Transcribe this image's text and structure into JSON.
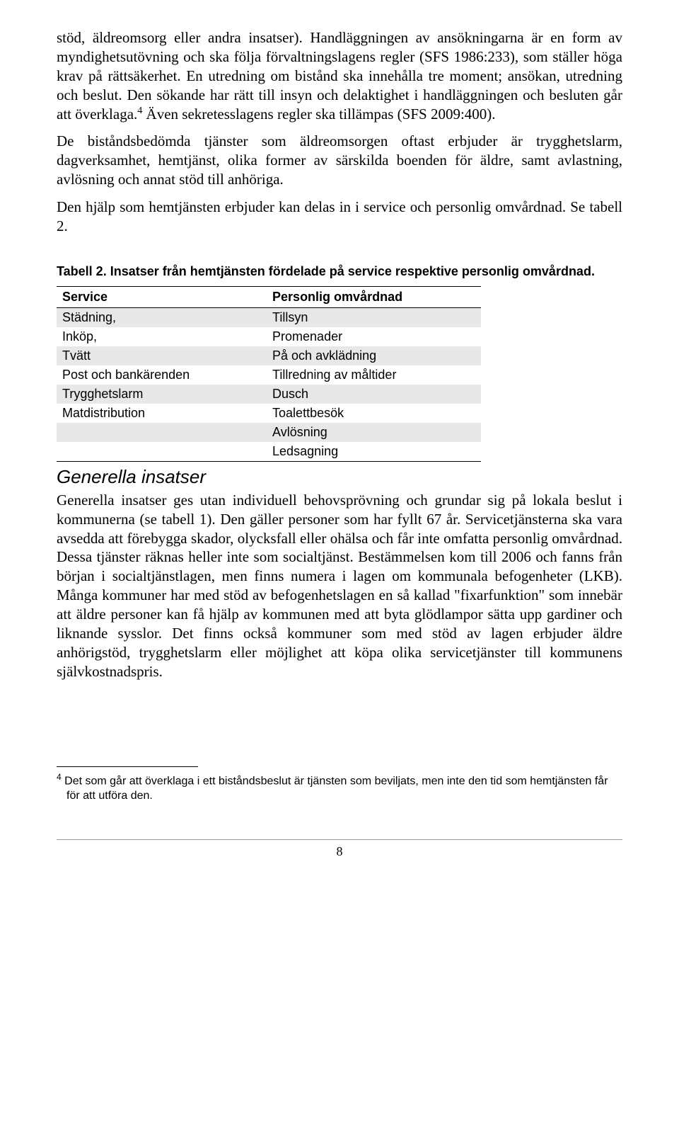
{
  "paragraphs": {
    "p1": "stöd, äldreomsorg eller andra insatser). Handläggningen av ansökningarna är en form av myndighetsutövning och ska följa förvaltningslagens regler (SFS 1986:233), som ställer höga krav på rättsäkerhet. En utredning om bistånd ska innehålla tre moment; ansökan, utredning och beslut. Den sökande har rätt till insyn och delaktighet i handläggningen och besluten går att överklaga.",
    "p1b": " Även sekretesslagens regler ska tillämpas (SFS 2009:400).",
    "p2": "De biståndsbedömda tjänster som äldreomsorgen oftast erbjuder är trygghetslarm, dagverksamhet, hemtjänst, olika former av särskilda boenden för äldre, samt avlastning, avlösning och annat stöd till anhöriga.",
    "p3": "Den hjälp som hemtjänsten erbjuder kan delas in i service och personlig omvårdnad. Se tabell 2.",
    "p4": "Generella insatser ges utan individuell behovsprövning och grundar sig på lokala beslut i kommunerna (se tabell 1). Den gäller personer som har fyllt 67 år. Servicetjänsterna ska vara avsedda att förebygga skador, olycksfall eller ohälsa och får inte omfatta personlig omvårdnad. Dessa tjänster räknas heller inte som socialtjänst. Bestämmelsen kom till 2006 och fanns från början i socialtjänstlagen, men finns numera i lagen om kommunala befogenheter (LKB). Många kommuner har med stöd av befogenhetslagen en så kallad \"fixarfunktion\" som innebär att äldre personer kan få hjälp av kommunen med att byta glödlampor sätta upp gardiner och liknande sysslor. Det finns också kommuner som med stöd av lagen erbjuder äldre anhörigstöd, trygghetslarm eller möjlighet att köpa olika servicetjänster till kommunens självkostnadspris."
  },
  "footnoteMark": "4",
  "tableCaption": "Tabell 2. Insatser från hemtjänsten fördelade på service respektive personlig omvårdnad.",
  "table": {
    "headers": {
      "col1": "Service",
      "col2": "Personlig omvårdnad"
    },
    "rows": [
      {
        "c1": "Städning,",
        "c2": "Tillsyn",
        "shaded": true
      },
      {
        "c1": "Inköp,",
        "c2": "Promenader",
        "shaded": false
      },
      {
        "c1": "Tvätt",
        "c2": "På och avklädning",
        "shaded": true
      },
      {
        "c1": "Post och bankärenden",
        "c2": "Tillredning av måltider",
        "shaded": false
      },
      {
        "c1": "Trygghetslarm",
        "c2": "Dusch",
        "shaded": true
      },
      {
        "c1": "Matdistribution",
        "c2": "Toalettbesök",
        "shaded": false
      },
      {
        "c1": "",
        "c2": "Avlösning",
        "shaded": true
      },
      {
        "c1": "",
        "c2": "Ledsagning",
        "shaded": false
      }
    ]
  },
  "sectionHeading": "Generella insatser",
  "footnote": {
    "num": "4",
    "text": " Det som går att överklaga i ett biståndsbeslut är tjänsten som beviljats, men inte den tid som hemtjänsten får för att utföra den."
  },
  "pageNumber": "8"
}
